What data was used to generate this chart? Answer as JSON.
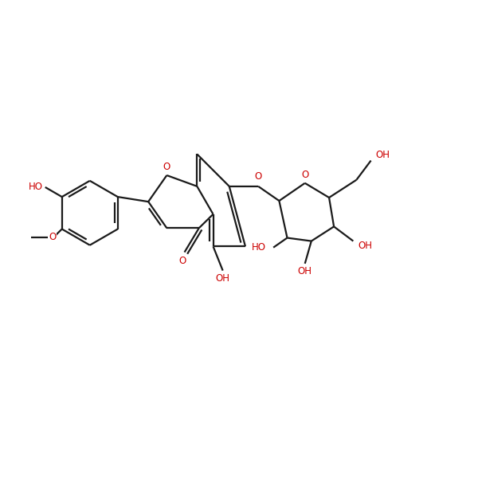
{
  "background": "#ffffff",
  "bond_color": "#1a1a1a",
  "heteroatom_color": "#cc0000",
  "line_width": 1.6,
  "font_size": 8.5,
  "fig_size": [
    6.0,
    6.0
  ],
  "dpi": 100,
  "xlim": [
    0,
    10
  ],
  "ylim": [
    1,
    9
  ]
}
